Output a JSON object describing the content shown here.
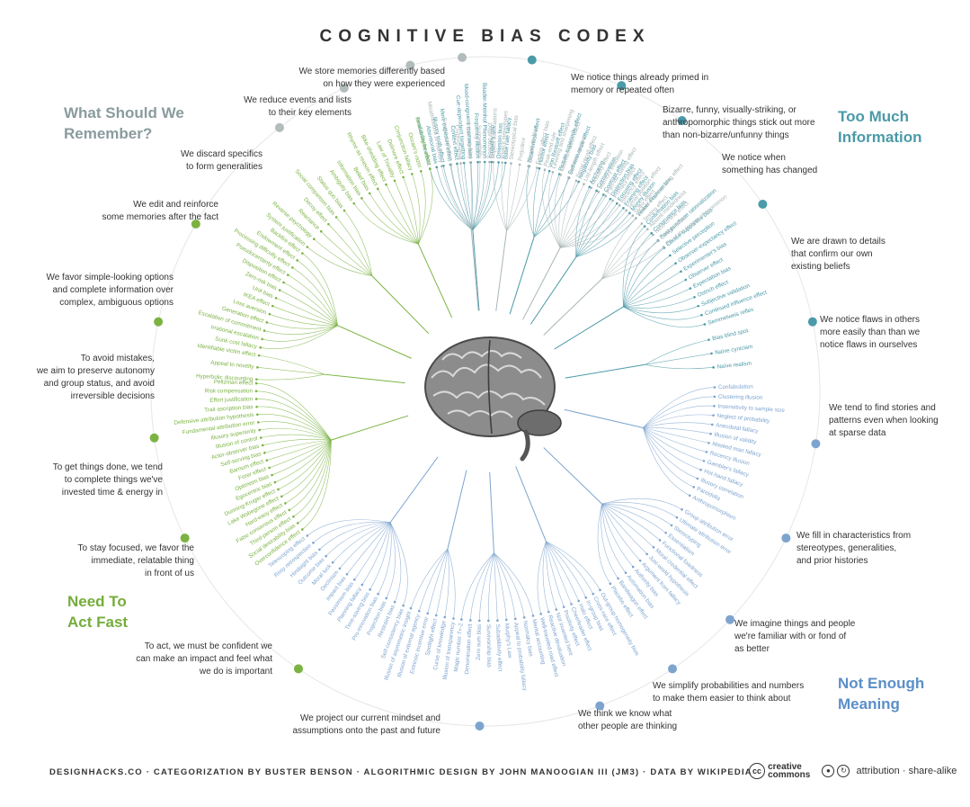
{
  "title": "COGNITIVE BIAS CODEX",
  "quadrants": {
    "remember": [
      "What Should We",
      "Remember?"
    ],
    "too_much": [
      "Too Much",
      "Information"
    ],
    "act_fast": [
      "Need To",
      "Act Fast"
    ],
    "not_enough": [
      "Not Enough",
      "Meaning"
    ]
  },
  "colors": {
    "remember": "#a9b5b6",
    "too_much": "#4b9aa8",
    "act_fast": "#7bb342",
    "not_enough": "#7da4cf"
  },
  "categories": [
    {
      "id": "primed",
      "lines": [
        "We notice things already primed in",
        "memory or repeated often"
      ]
    },
    {
      "id": "bizarre",
      "lines": [
        "Bizarre, funny, visually-striking, or",
        "anthropomorphic things stick out more",
        "than non-bizarre/unfunny things"
      ]
    },
    {
      "id": "changed",
      "lines": [
        "We notice when",
        "something has changed"
      ]
    },
    {
      "id": "confirm",
      "lines": [
        "We are drawn to details",
        "that confirm our own",
        "existing beliefs"
      ]
    },
    {
      "id": "flaws",
      "lines": [
        "We notice flaws in others",
        "more easily than than we",
        "notice flaws in ourselves"
      ]
    },
    {
      "id": "stories",
      "lines": [
        "We tend to find stories and",
        "patterns even when looking",
        "at sparse data"
      ]
    },
    {
      "id": "stereotypes",
      "lines": [
        "We fill in characteristics from",
        "stereotypes, generalities,",
        "and prior histories"
      ]
    },
    {
      "id": "familiar",
      "lines": [
        "We imagine things and people",
        "we're familiar with or fond of",
        "as better"
      ]
    },
    {
      "id": "simplify",
      "lines": [
        "We simplify probabilities and numbers",
        "to make them easier to think about"
      ]
    },
    {
      "id": "know",
      "lines": [
        "We think we know what",
        "other people are thinking"
      ]
    },
    {
      "id": "project",
      "lines": [
        "We project our current mindset and",
        "assumptions onto the past and future"
      ]
    },
    {
      "id": "confident",
      "lines": [
        "To act, we must be confident we",
        "can make an impact and feel what",
        "we do is important"
      ]
    },
    {
      "id": "focused",
      "lines": [
        "To stay focused, we favor the",
        "immediate, relatable thing",
        "in front of us"
      ]
    },
    {
      "id": "done",
      "lines": [
        "To get things done, we tend",
        "to complete things we've",
        "invested time & energy in"
      ]
    },
    {
      "id": "mistakes",
      "lines": [
        "To avoid mistakes,",
        "we aim to preserve autonomy",
        "and group status, and avoid",
        "irreversible decisions"
      ]
    },
    {
      "id": "simple",
      "lines": [
        "We favor simple-looking options",
        "and complete information over",
        "complex, ambiguous options"
      ]
    },
    {
      "id": "edit",
      "lines": [
        "We edit and reinforce",
        "some memories after the fact"
      ]
    },
    {
      "id": "discard",
      "lines": [
        "We discard specifics",
        "to form generalities"
      ]
    },
    {
      "id": "reduce",
      "lines": [
        "We reduce events and lists",
        "to their key elements"
      ]
    },
    {
      "id": "store",
      "lines": [
        "We store memories differently based",
        "on how they were experienced"
      ]
    }
  ],
  "bias_groups": [
    {
      "cat": "primed",
      "names": [
        "Availability heuristic",
        "Attentional bias",
        "Illusory truth effect",
        "Mere exposure effect",
        "Context effect",
        "Cue-dependent forgetting",
        "Mood-congruent memory bias",
        "Frequency illusion",
        "Baader-Meinhof Phenomenon",
        "Empathy gap",
        "Omission bias",
        "Base rate fallacy"
      ]
    },
    {
      "cat": "bizarre",
      "names": [
        "Bizarreness effect",
        "Humor effect",
        "Von Restorff effect",
        "Picture superiority effect",
        "Self-relevance effect",
        "Negativity bias"
      ]
    },
    {
      "cat": "changed",
      "names": [
        "Anchoring",
        "Conservatism",
        "Contrast effect",
        "Distinction bias",
        "Focusing effect",
        "Framing effect",
        "Money illusion",
        "Weber-Fechner law"
      ]
    },
    {
      "cat": "confirm",
      "names": [
        "Confirmation bias",
        "Congruence bias",
        "Post-purchase rationalization",
        "Choice-supportive bias",
        "Selective perception",
        "Observer-expectancy effect",
        "Experimenter's bias",
        "Observer effect",
        "Expectation bias",
        "Ostrich effect",
        "Subjective validation",
        "Continued influence effect",
        "Semmelweis reflex"
      ]
    },
    {
      "cat": "flaws",
      "names": [
        "Bias blind spot",
        "Naïve cynicism",
        "Naïve realism"
      ]
    },
    {
      "cat": "stories",
      "names": [
        "Confabulation",
        "Clustering illusion",
        "Insensitivity to sample size",
        "Neglect of probability",
        "Anecdotal fallacy",
        "Illusion of validity",
        "Masked man fallacy",
        "Recency illusion",
        "Gambler's fallacy",
        "Hot-hand fallacy",
        "Illusory correlation",
        "Pareidolia",
        "Anthropomorphism"
      ]
    },
    {
      "cat": "stereotypes",
      "names": [
        "Group attribution error",
        "Ultimate attribution error",
        "Stereotyping",
        "Essentialism",
        "Functional fixedness",
        "Moral credential effect",
        "Just-world hypothesis",
        "Argument from fallacy",
        "Authority bias",
        "Automation bias",
        "Bandwagon effect",
        "Placebo effect"
      ]
    },
    {
      "cat": "familiar",
      "names": [
        "Out-group homogeneity bias",
        "Cross-race effect",
        "In-group bias",
        "Halo effect",
        "Cheerleader effect",
        "Positivity effect",
        "Not invented here",
        "Reactive devaluation",
        "Well-traveled road effect"
      ]
    },
    {
      "cat": "simplify",
      "names": [
        "Mental accounting",
        "Normalcy bias",
        "Appeal to probability fallacy",
        "Murphy's Law",
        "Subadditivity effect",
        "Survivorship bias",
        "Zero sum bias",
        "Denomination effect",
        "Magic number 7+-2"
      ]
    },
    {
      "cat": "know",
      "names": [
        "Illusion of transparency",
        "Curse of knowledge",
        "Spotlight effect",
        "Extrinsic incentive error",
        "Illusion of external agency",
        "Illusion of asymmetric insight"
      ]
    },
    {
      "cat": "project",
      "names": [
        "Self-consistency bias",
        "Restraint bias",
        "Projection bias",
        "Pro-innovation bias",
        "Time-saving bias",
        "Planning fallacy",
        "Pessimism bias",
        "Impact bias",
        "Declinism",
        "Moral luck",
        "Outcome bias",
        "Hindsight bias",
        "Rosy retrospection",
        "Telescoping effect"
      ]
    },
    {
      "cat": "confident",
      "names": [
        "Overconfidence effect",
        "Social desirability bias",
        "Third-person effect",
        "False consensus effect",
        "Hard-easy effect",
        "Lake Wobegone effect",
        "Dunning-Kruger effect",
        "Egocentric bias",
        "Optimism bias",
        "Forer effect",
        "Barnum effect",
        "Self-serving bias",
        "Actor-observer bias",
        "Illusion of control",
        "Illusory superiority",
        "Fundamental attribution error",
        "Defensive attribution hypothesis",
        "Trait ascription bias",
        "Effort justification",
        "Risk compensation",
        "Peltzman effect"
      ]
    },
    {
      "cat": "focused",
      "names": [
        "Hyperbolic discounting",
        "Appeal to novelty",
        "Identifiable victim effect"
      ]
    },
    {
      "cat": "done",
      "names": [
        "Sunk cost fallacy",
        "Irrational escalation",
        "Escalation of commitment",
        "Generation effect",
        "Loss aversion",
        "IKEA effect",
        "Unit bias",
        "Zero-risk bias",
        "Disposition effect",
        "Pseudocertainty effect",
        "Processing difficulty effect",
        "Endowment effect",
        "Backfire effect"
      ]
    },
    {
      "cat": "mistakes",
      "names": [
        "System justification",
        "Reverse psychology",
        "Reactance",
        "Decoy effect",
        "Social comparison bias",
        "Status quo bias"
      ]
    },
    {
      "cat": "simple",
      "names": [
        "Ambiguity bias",
        "Information bias",
        "Belief bias",
        "Rhyme as reason effect",
        "Bike-shedding effect",
        "Law of Triviality",
        "Delmore effect",
        "Conjunction fallacy",
        "Occam's razor",
        "Less-is-better effect"
      ]
    },
    {
      "cat": "edit",
      "names": [
        "Misattribution of memory",
        "Source confusion",
        "Cryptomnesia",
        "False memory",
        "Suggestibility",
        "Spacing effect"
      ]
    },
    {
      "cat": "discard",
      "names": [
        "Implicit associations",
        "Implicit stereotypes",
        "Stereotypical bias",
        "Prejudice",
        "Negativity bias",
        "Fading affect bias"
      ]
    },
    {
      "cat": "reduce",
      "names": [
        "Peak-end rule",
        "Leveling and sharpening",
        "Misinformation effect",
        "Duration neglect",
        "Serial recall effect",
        "List-length effect",
        "Modality effect",
        "Memory inhibition",
        "Part-list cueing effect",
        "Primacy effect",
        "Recency effect",
        "Serial position effect",
        "Suffix effect"
      ]
    },
    {
      "cat": "store",
      "names": [
        "Levels of processing effect",
        "Testing effect",
        "Absent-mindedness",
        "Next-in-line effect",
        "Google effect",
        "Tip of the tongue phenomenon"
      ]
    }
  ],
  "footer": "DESIGNHACKS.CO · CATEGORIZATION BY BUSTER BENSON · ALGORITHMIC DESIGN BY JOHN MANOOGIAN III (JM3) · DATA BY WIKIPEDIA",
  "license": {
    "cc_mark": "cc",
    "cc_word_1": "creative",
    "cc_word_2": "commons",
    "by_icon": "attribution-icon",
    "sa_icon": "share-alike-icon",
    "text": "attribution · share-alike"
  }
}
